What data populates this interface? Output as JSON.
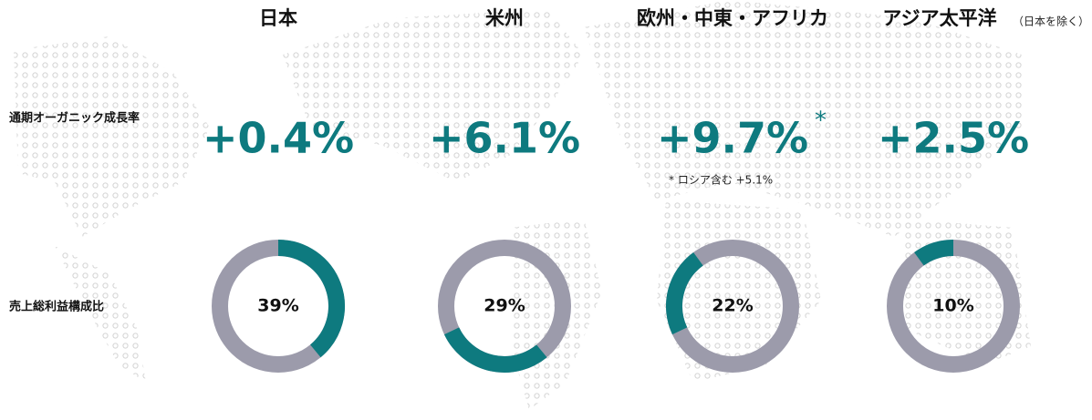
{
  "chart_data": {
    "type": "donut",
    "categories": [
      "日本",
      "米州",
      "欧州・中東・アフリカ",
      "アジア太平洋"
    ],
    "category_note": "（日本を除く）",
    "row_labels": [
      "通期オーガニック成長率",
      "売上総利益構成比"
    ],
    "growth": {
      "values": [
        0.4,
        6.1,
        9.7,
        2.5
      ],
      "value_labels": [
        "+0.4%",
        "+6.1%",
        "+9.7%",
        "+2.5%"
      ]
    },
    "annotation_mark": "*",
    "footnote": "* ロシア含む +5.1%",
    "values": [
      39,
      29,
      22,
      10
    ],
    "value_labels": [
      "39%",
      "29%",
      "22%",
      "10%"
    ],
    "color": "#0e7a7f",
    "track_color": "#9c9bab"
  }
}
